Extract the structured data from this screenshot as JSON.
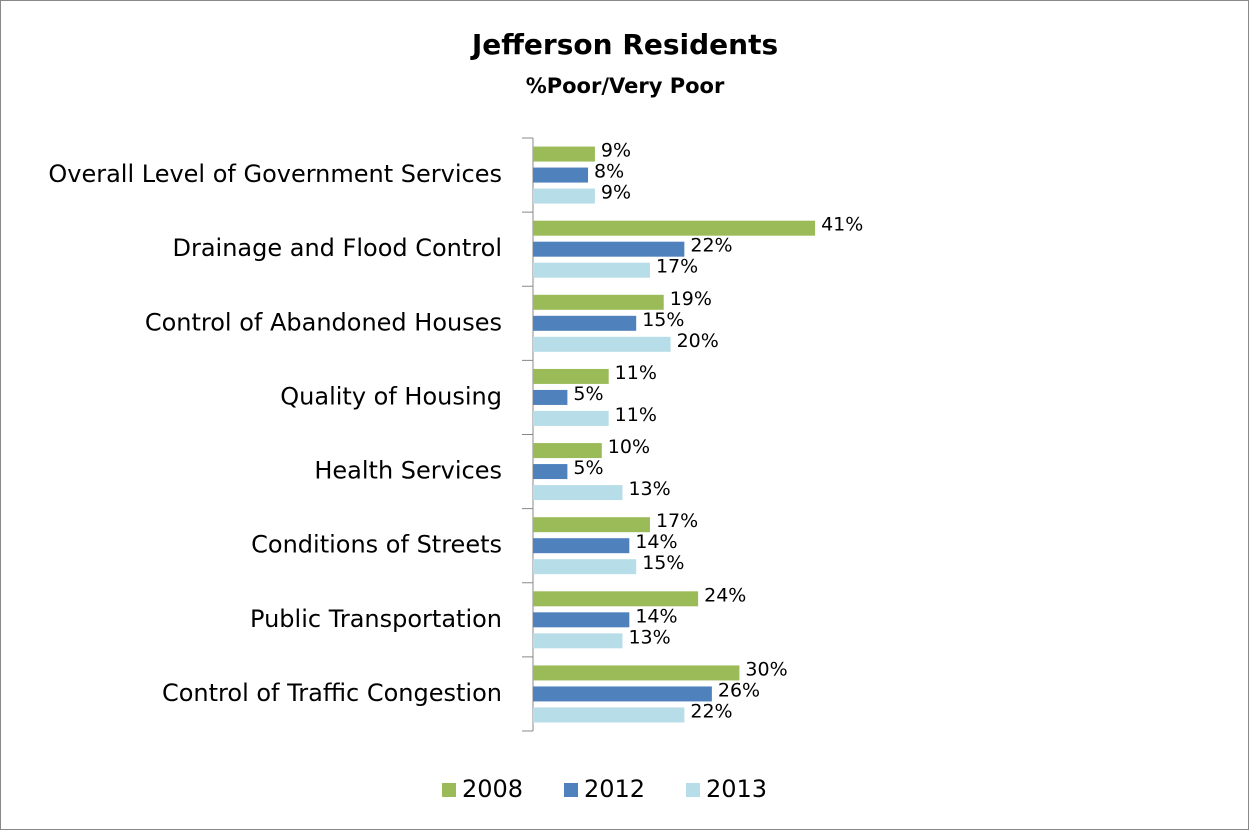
{
  "chart_data": {
    "type": "bar",
    "orientation": "horizontal",
    "title": "Jefferson Residents",
    "subtitle": "%Poor/Very Poor",
    "categories": [
      "Overall Level of Government Services",
      "Drainage and Flood Control",
      "Control of Abandoned Houses",
      "Quality of Housing",
      "Health Services",
      "Conditions of Streets",
      "Public Transportation",
      "Control of Traffic Congestion"
    ],
    "series": [
      {
        "name": "2008",
        "color": "#9bbb59",
        "values": [
          9,
          41,
          19,
          11,
          10,
          17,
          24,
          30
        ],
        "value_labels": [
          "9%",
          "41%",
          "19%",
          "11%",
          "10%",
          "17%",
          "24%",
          "30%"
        ]
      },
      {
        "name": "2012",
        "color": "#4f81bd",
        "values": [
          8,
          22,
          15,
          5,
          5,
          14,
          14,
          26
        ],
        "value_labels": [
          "8%",
          "22%",
          "15%",
          "5%",
          "5%",
          "14%",
          "14%",
          "26%"
        ]
      },
      {
        "name": "2013",
        "color": "#b7dee8",
        "values": [
          9,
          17,
          20,
          11,
          13,
          15,
          13,
          22
        ],
        "value_labels": [
          "9%",
          "17%",
          "20%",
          "11%",
          "13%",
          "15%",
          "13%",
          "22%"
        ]
      }
    ],
    "xlim": [
      0,
      100
    ],
    "legend": "bottom"
  }
}
